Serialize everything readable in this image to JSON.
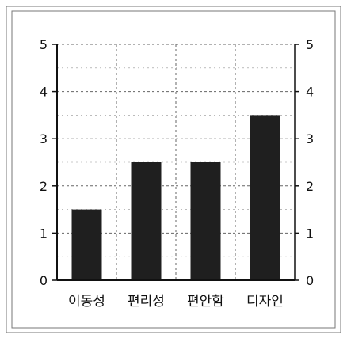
{
  "chart_data": {
    "type": "bar",
    "title": "",
    "xlabel": "",
    "ylabel": "",
    "categories": [
      "이동성",
      "편리성",
      "편안함",
      "디자인"
    ],
    "values": [
      1.5,
      2.5,
      2.5,
      3.5
    ],
    "ylim": [
      0,
      5
    ],
    "y_ticks": [
      "0",
      "1",
      "2",
      "3",
      "4",
      "5"
    ],
    "grid": true,
    "grid_style": "dashed",
    "right_axis_ticks": true,
    "legend": "none",
    "colors": {
      "bar": "#1f1f1f",
      "axis": "#111111",
      "grid": "#666666",
      "frame": "#777777"
    }
  }
}
